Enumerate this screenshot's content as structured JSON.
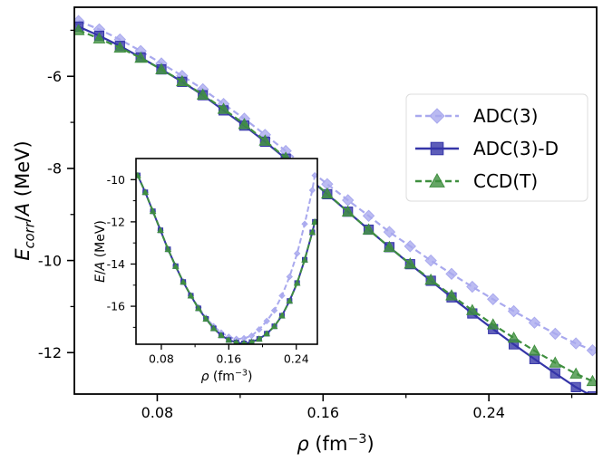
{
  "chart_data": [
    {
      "id": "main",
      "type": "line",
      "xlabel": "ρ (fm⁻³)",
      "ylabel": "E_corr/A (MeV)",
      "xlim": [
        0.04,
        0.292
      ],
      "ylim": [
        -12.9,
        -4.5
      ],
      "xticks": [
        0.08,
        0.16,
        0.24
      ],
      "xtick_labels": [
        "0.08",
        "0.16",
        "0.24"
      ],
      "xminor": [
        0.12,
        0.2,
        0.28
      ],
      "yticks": [
        -6,
        -8,
        -10,
        -12
      ],
      "ytick_labels": [
        "-6",
        "-8",
        "-10",
        "-12"
      ],
      "yminor": [
        -5,
        -7,
        -9,
        -11
      ],
      "grid": false,
      "legend_position": "right-center",
      "x": [
        0.042,
        0.052,
        0.062,
        0.072,
        0.082,
        0.092,
        0.102,
        0.112,
        0.122,
        0.132,
        0.142,
        0.152,
        0.162,
        0.172,
        0.182,
        0.192,
        0.202,
        0.212,
        0.222,
        0.232,
        0.242,
        0.252,
        0.262,
        0.272,
        0.282,
        0.29
      ],
      "series": [
        {
          "name": "ADC(3)",
          "color": "#a9a9ee",
          "marker": "diamond",
          "linestyle": "dashed",
          "values": [
            -4.8,
            -4.98,
            -5.2,
            -5.45,
            -5.72,
            -5.99,
            -6.28,
            -6.6,
            -6.92,
            -7.27,
            -7.62,
            -7.98,
            -8.34,
            -8.69,
            -9.03,
            -9.38,
            -9.69,
            -10.0,
            -10.29,
            -10.57,
            -10.84,
            -11.1,
            -11.35,
            -11.59,
            -11.8,
            -11.95
          ]
        },
        {
          "name": "ADC(3)-D",
          "color": "#3535a8",
          "marker": "square",
          "linestyle": "solid",
          "values": [
            -4.92,
            -5.12,
            -5.34,
            -5.59,
            -5.85,
            -6.12,
            -6.41,
            -6.74,
            -7.07,
            -7.42,
            -7.79,
            -8.17,
            -8.56,
            -8.94,
            -9.33,
            -9.71,
            -10.08,
            -10.44,
            -10.8,
            -11.15,
            -11.49,
            -11.82,
            -12.14,
            -12.45,
            -12.75,
            -12.95
          ]
        },
        {
          "name": "CCD(T)",
          "color": "#3f8f3f",
          "marker": "triangle",
          "linestyle": "dashed",
          "values": [
            -5.0,
            -5.18,
            -5.38,
            -5.6,
            -5.85,
            -6.11,
            -6.4,
            -6.71,
            -7.04,
            -7.4,
            -7.77,
            -8.16,
            -8.55,
            -8.94,
            -9.33,
            -9.71,
            -10.07,
            -10.42,
            -10.76,
            -11.08,
            -11.39,
            -11.68,
            -11.96,
            -12.22,
            -12.46,
            -12.62
          ]
        }
      ]
    },
    {
      "id": "inset",
      "type": "line",
      "xlabel": "ρ (fm⁻³)",
      "ylabel": "E/A (MeV)",
      "xlim": [
        0.05,
        0.265
      ],
      "ylim": [
        -17.8,
        -9.0
      ],
      "xticks": [
        0.08,
        0.16,
        0.24
      ],
      "xtick_labels": [
        "0.08",
        "0.16",
        "0.24"
      ],
      "xminor": [
        0.12,
        0.2
      ],
      "yticks": [
        -10,
        -12,
        -14,
        -16
      ],
      "ytick_labels": [
        "-10",
        "-12",
        "-14",
        "-16"
      ],
      "yminor": [
        -11,
        -13,
        -15,
        -17
      ],
      "grid": false,
      "x": [
        0.052,
        0.061,
        0.07,
        0.079,
        0.088,
        0.097,
        0.106,
        0.115,
        0.124,
        0.133,
        0.142,
        0.151,
        0.16,
        0.169,
        0.178,
        0.187,
        0.196,
        0.205,
        0.214,
        0.223,
        0.232,
        0.241,
        0.25,
        0.259,
        0.262
      ],
      "series": [
        {
          "name": "ADC(3)",
          "color": "#a9a9ee",
          "marker": "diamond",
          "linestyle": "dashed",
          "values": [
            -9.8,
            -10.6,
            -11.5,
            -12.4,
            -13.3,
            -14.1,
            -14.85,
            -15.5,
            -16.05,
            -16.55,
            -16.95,
            -17.25,
            -17.45,
            -17.55,
            -17.52,
            -17.4,
            -17.1,
            -16.7,
            -16.2,
            -15.5,
            -14.6,
            -13.5,
            -12.1,
            -10.5,
            -9.8
          ]
        },
        {
          "name": "ADC(3)-D",
          "color": "#3535a8",
          "marker": "square",
          "linestyle": "solid",
          "values": [
            -9.8,
            -10.6,
            -11.5,
            -12.4,
            -13.3,
            -14.1,
            -14.85,
            -15.5,
            -16.1,
            -16.6,
            -17.05,
            -17.38,
            -17.6,
            -17.72,
            -17.76,
            -17.7,
            -17.55,
            -17.3,
            -16.95,
            -16.45,
            -15.75,
            -14.9,
            -13.8,
            -12.5,
            -12.0
          ]
        },
        {
          "name": "CCD(T)",
          "color": "#3f8f3f",
          "marker": "triangle",
          "linestyle": "dashed",
          "values": [
            -9.8,
            -10.6,
            -11.5,
            -12.4,
            -13.3,
            -14.1,
            -14.85,
            -15.5,
            -16.1,
            -16.6,
            -17.05,
            -17.38,
            -17.6,
            -17.72,
            -17.76,
            -17.7,
            -17.55,
            -17.3,
            -16.95,
            -16.45,
            -15.75,
            -14.9,
            -13.8,
            -12.5,
            -12.0
          ]
        }
      ]
    }
  ]
}
